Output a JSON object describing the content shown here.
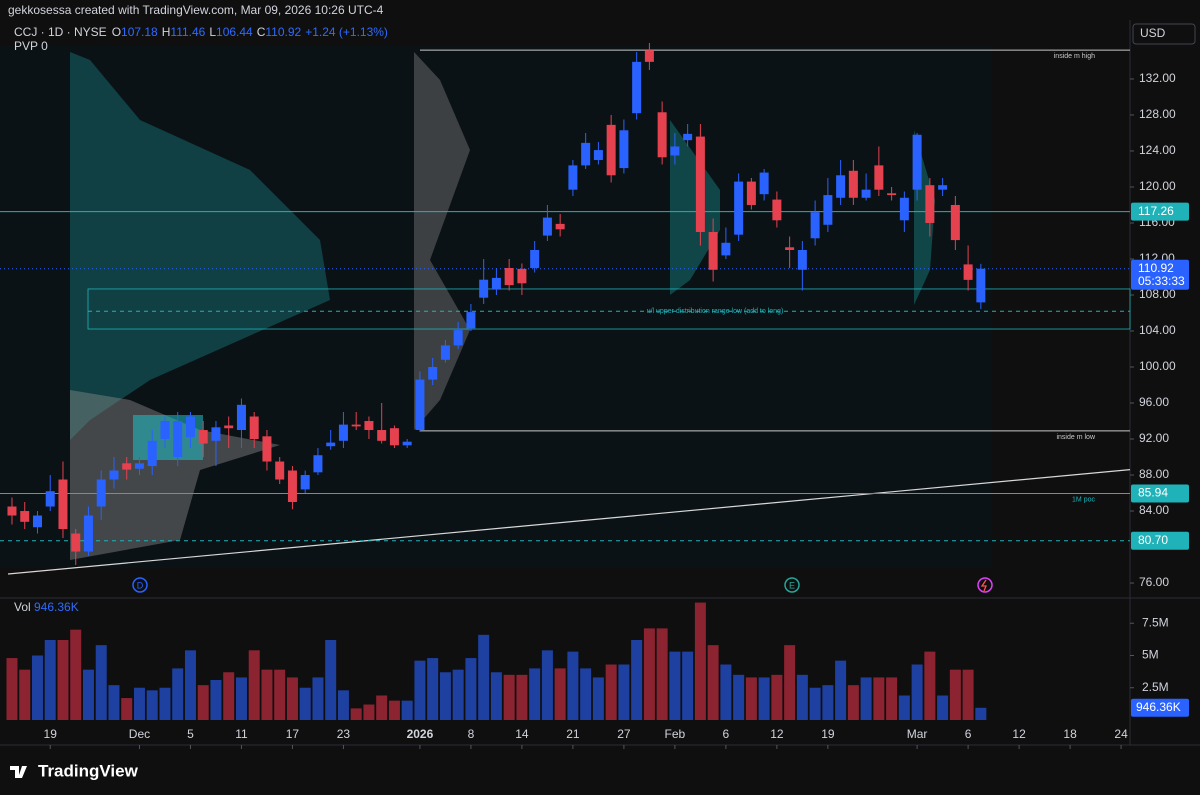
{
  "header": {
    "credit": "gekkosessa created with TradingView.com, Mar 09, 2026 10:26 UTC-4"
  },
  "legend": {
    "symbol": "CCJ · 1D · NYSE",
    "ohlc": [
      {
        "key": "O",
        "value": "107.18"
      },
      {
        "key": "H",
        "value": "111.46"
      },
      {
        "key": "L",
        "value": "106.44"
      },
      {
        "key": "C",
        "value": "110.92"
      }
    ],
    "change": "+1.24 (+1.13%)",
    "indicator": "PVP",
    "indicator_value": "0"
  },
  "currency": "USD",
  "footer": {
    "brand": "TradingView"
  },
  "chart_data": {
    "type": "candlestick",
    "colors": {
      "up": "#2962ff",
      "down": "#e5414f",
      "volume_up": "#1e40a0",
      "volume_down": "#8c2331"
    },
    "open": [
      84.5,
      84,
      82.2,
      84.5,
      87.5,
      81.5,
      79.5,
      84.5,
      87.5,
      89.3,
      88.7,
      89,
      92,
      90,
      92.2,
      93,
      91.8,
      93.5,
      93,
      94.5,
      92.3,
      89.5,
      88.5,
      86.4,
      88.3,
      91.2,
      91.8,
      93.6,
      94,
      93,
      93.2,
      91.3,
      93,
      98.6,
      100.8,
      102.4,
      104.3,
      107.7,
      108.6,
      111,
      110.9,
      111,
      114.6,
      115.9,
      119.7,
      122.4,
      123,
      126.9,
      122.1,
      128.2,
      135.2,
      128.3,
      123.5,
      125.2,
      125.6,
      115,
      112.4,
      114.7,
      120.6,
      119.2,
      118.6,
      113.3,
      110.8,
      114.3,
      115.8,
      118.8,
      121.8,
      118.8,
      122.4,
      119.3,
      116.3,
      119.7,
      120.2,
      119.7,
      118,
      111.4,
      107.18
    ],
    "high": [
      85.5,
      85,
      84,
      88,
      89.5,
      82,
      84.5,
      88.5,
      90,
      90,
      90,
      93,
      94.5,
      95,
      95,
      94,
      94,
      94.5,
      96.5,
      95,
      93,
      90,
      89,
      88.5,
      91,
      93,
      95,
      95,
      94.5,
      96,
      93.5,
      92,
      99.5,
      101,
      103,
      105,
      107,
      112,
      111,
      112,
      111.5,
      114,
      118,
      117,
      123,
      126,
      125,
      128,
      127.5,
      135,
      136,
      129.5,
      126,
      127,
      127,
      116.5,
      115.5,
      121.5,
      121,
      122,
      119.5,
      114.5,
      114,
      118.5,
      121,
      123,
      123,
      121.5,
      124.5,
      120,
      119.5,
      126,
      121,
      121,
      119,
      113.5,
      111.46
    ],
    "low": [
      82.5,
      82,
      81.5,
      84,
      81,
      78,
      79,
      83,
      86.5,
      87.5,
      88,
      88,
      91,
      89,
      91,
      90,
      89,
      91,
      91,
      91,
      88.5,
      87,
      84.2,
      86,
      88,
      90.8,
      91,
      93,
      92,
      91.5,
      91,
      91,
      92.8,
      98,
      100.5,
      102,
      104,
      107,
      108,
      108.5,
      108,
      110.5,
      114,
      114.5,
      119,
      122,
      122.5,
      120.5,
      121.5,
      127.5,
      133,
      122.5,
      122.5,
      124.5,
      113.5,
      109.5,
      112,
      114,
      117.5,
      118.5,
      115.5,
      111,
      108.5,
      113.5,
      115,
      118,
      118,
      118.5,
      119,
      118.5,
      115,
      118.5,
      114.5,
      119,
      113,
      108.5,
      106.44
    ],
    "close": [
      83.5,
      82.8,
      83.5,
      86.2,
      82,
      79.5,
      83.5,
      87.5,
      88.5,
      88.6,
      89.3,
      91.8,
      94,
      94,
      94.5,
      91.5,
      93.3,
      93.2,
      95.8,
      92,
      89.5,
      87.5,
      85,
      88,
      90.2,
      91.6,
      93.6,
      93.4,
      93,
      91.8,
      91.3,
      91.7,
      98.6,
      100,
      102.4,
      104.1,
      106.1,
      109.7,
      109.9,
      109.1,
      109.3,
      113,
      116.6,
      115.3,
      122.4,
      124.9,
      124.1,
      121.3,
      126.3,
      133.9,
      133.9,
      123.3,
      124.5,
      125.9,
      115,
      110.8,
      113.8,
      120.6,
      118,
      121.6,
      116.3,
      113,
      113,
      117.2,
      119.1,
      121.3,
      118.8,
      119.7,
      119.7,
      119.1,
      118.8,
      125.8,
      116,
      120.2,
      114.1,
      109.68,
      110.92
    ],
    "xlim": [
      -0.94,
      87.7
    ],
    "xticks": [
      {
        "value": 3,
        "label": "19"
      },
      {
        "value": 10,
        "label": "Dec"
      },
      {
        "value": 14,
        "label": "5"
      },
      {
        "value": 18,
        "label": "11"
      },
      {
        "value": 22,
        "label": "17"
      },
      {
        "value": 26,
        "label": "23"
      },
      {
        "value": 32,
        "label": "2026"
      },
      {
        "value": 36,
        "label": "8"
      },
      {
        "value": 40,
        "label": "14"
      },
      {
        "value": 44,
        "label": "21"
      },
      {
        "value": 48,
        "label": "27"
      },
      {
        "value": 52,
        "label": "Feb"
      },
      {
        "value": 56,
        "label": "6"
      },
      {
        "value": 60,
        "label": "12"
      },
      {
        "value": 64,
        "label": "19"
      },
      {
        "value": 71,
        "label": "Mar"
      },
      {
        "value": 75,
        "label": "6"
      },
      {
        "value": 79,
        "label": "12"
      },
      {
        "value": 83,
        "label": "18"
      },
      {
        "value": 87,
        "label": "24"
      }
    ],
    "ylim": [
      74.67,
      137.44
    ],
    "yticks": [
      {
        "value": 76,
        "label": "76.00"
      },
      {
        "value": 84,
        "label": "84.00"
      },
      {
        "value": 88,
        "label": "88.00"
      },
      {
        "value": 92,
        "label": "92.00"
      },
      {
        "value": 96,
        "label": "96.00"
      },
      {
        "value": 100,
        "label": "100.00"
      },
      {
        "value": 104,
        "label": "104.00"
      },
      {
        "value": 108,
        "label": "108.00"
      },
      {
        "value": 112,
        "label": "112.00"
      },
      {
        "value": 116,
        "label": "116.00"
      },
      {
        "value": 120,
        "label": "120.00"
      },
      {
        "value": 124,
        "label": "124.00"
      },
      {
        "value": 128,
        "label": "128.00"
      },
      {
        "value": 132,
        "label": "132.00"
      }
    ],
    "levels": [
      {
        "value": 135.2,
        "text": "inside m high",
        "color": "#c8c8c8",
        "style": "solid"
      },
      {
        "value": 92.9,
        "text": "inside m low",
        "color": "#c8c8c8",
        "style": "solid"
      },
      {
        "value": 117.26,
        "label": "117.26",
        "color": "#1fb2b8",
        "style": "solid"
      },
      {
        "value": 85.94,
        "label": "85.94",
        "text": "1M poc",
        "color": "#1fb2b8",
        "style": "solid"
      },
      {
        "value": 80.7,
        "label": "80.70",
        "color": "#1fb2b8",
        "style": "dashed"
      },
      {
        "value": 106.2,
        "text": "u/l upper distribution range low (add to long)",
        "color": "#1fb2b8",
        "style": "dashed"
      }
    ],
    "zone": [
      104.22,
      108.67
    ],
    "trendline": [
      77.0,
      88.6
    ],
    "last_price": {
      "value": 110.92,
      "countdown": "05:33:33",
      "color": "#2962ff"
    },
    "events": [
      {
        "label": "D",
        "color": "#2962ff"
      },
      {
        "label": "E",
        "color": "#26a69a"
      }
    ],
    "volume": {
      "name": "Vol",
      "last_label": "946.36K",
      "values": [
        4800000,
        3900000,
        5000000,
        6200000,
        6200000,
        7000000,
        3900000,
        5800000,
        2700000,
        1700000,
        2500000,
        2300000,
        2500000,
        4000000,
        5400000,
        2700000,
        3100000,
        3700000,
        3300000,
        5400000,
        3900000,
        3900000,
        3300000,
        2500000,
        3300000,
        6200000,
        2300000,
        900000,
        1200000,
        1900000,
        1500000,
        1500000,
        4600000,
        4800000,
        3700000,
        3900000,
        4800000,
        6600000,
        3700000,
        3500000,
        3500000,
        4000000,
        5400000,
        4000000,
        5300000,
        4000000,
        3300000,
        4300000,
        4300000,
        6200000,
        7100000,
        7100000,
        5300000,
        5300000,
        9100000,
        5800000,
        4300000,
        3500000,
        3300000,
        3300000,
        3500000,
        5800000,
        3500000,
        2500000,
        2700000,
        4600000,
        2700000,
        3300000,
        3300000,
        3300000,
        1900000,
        4300000,
        5300000,
        1900000,
        3900000,
        3900000,
        946360
      ],
      "ylim": [
        0,
        9300000
      ],
      "yticks": [
        {
          "value": 2500000,
          "label": "2.5M"
        },
        {
          "value": 5000000,
          "label": "5M"
        },
        {
          "value": 7500000,
          "label": "7.5M"
        }
      ]
    }
  }
}
